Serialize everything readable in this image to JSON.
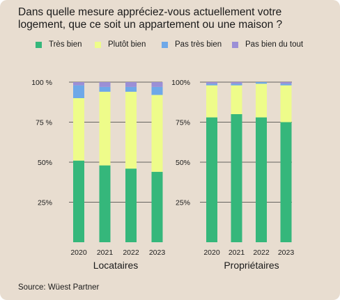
{
  "title": "Dans quelle mesure appréciez-vous actuellement votre logement, que ce soit un appartement ou une maison ?",
  "source": "Source: Wüest Partner",
  "legend": [
    {
      "label": "Très bien",
      "color": "#35b77b"
    },
    {
      "label": "Plutôt bien",
      "color": "#eefc8a"
    },
    {
      "label": "Pas très bien",
      "color": "#6ea8e8"
    },
    {
      "label": "Pas bien du tout",
      "color": "#9b8fd6"
    }
  ],
  "chart_data": [
    {
      "type": "bar",
      "stacked": true,
      "panel_label": "Locataires",
      "categories": [
        "2020",
        "2021",
        "2022",
        "2023"
      ],
      "ylim": [
        0,
        100
      ],
      "yticks": [
        "25%",
        "50%",
        "75 %",
        "100 %"
      ],
      "yticks_values": [
        25,
        50,
        75,
        100
      ],
      "series": [
        {
          "name": "Très bien",
          "values": [
            51,
            48,
            46,
            44
          ]
        },
        {
          "name": "Plutôt bien",
          "values": [
            39,
            46,
            48,
            48
          ]
        },
        {
          "name": "Pas très bien",
          "values": [
            8,
            3,
            3,
            5
          ]
        },
        {
          "name": "Pas bien du tout",
          "values": [
            2,
            3,
            3,
            3
          ]
        }
      ]
    },
    {
      "type": "bar",
      "stacked": true,
      "panel_label": "Propriétaires",
      "categories": [
        "2020",
        "2021",
        "2022",
        "2023"
      ],
      "ylim": [
        0,
        100
      ],
      "yticks": [
        "25%",
        "50%",
        "75%",
        "100%"
      ],
      "yticks_values": [
        25,
        50,
        75,
        100
      ],
      "series": [
        {
          "name": "Très bien",
          "values": [
            78,
            80,
            78,
            75
          ]
        },
        {
          "name": "Plutôt bien",
          "values": [
            20,
            18,
            21,
            23
          ]
        },
        {
          "name": "Pas très bien",
          "values": [
            1,
            1,
            1,
            1
          ]
        },
        {
          "name": "Pas bien du tout",
          "values": [
            1,
            1,
            0,
            1
          ]
        }
      ]
    }
  ]
}
